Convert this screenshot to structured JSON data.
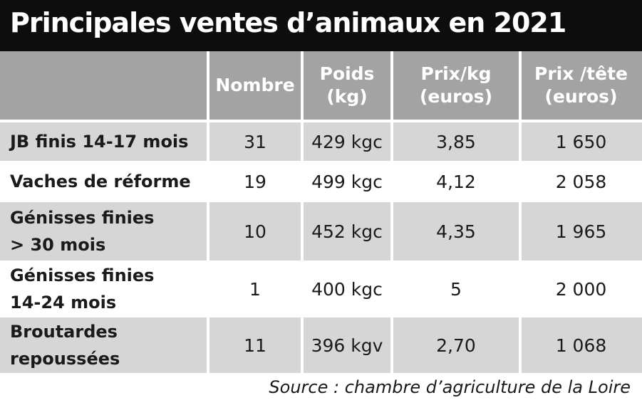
{
  "title": "Principales ventes d’animaux en 2021",
  "columns": {
    "nombre": "Nombre",
    "poids_1": "Poids",
    "poids_2": "(kg)",
    "prixkg_1": "Prix/kg",
    "prixkg_2": "(euros)",
    "prixtete_1": "Prix /tête",
    "prixtete_2": "(euros)"
  },
  "rows": [
    {
      "label_1": "JB finis 14-17 mois",
      "label_2": "",
      "nombre": "31",
      "poids": "429 kgc",
      "prix_kg": "3,85",
      "prix_tete": "1 650"
    },
    {
      "label_1": "Vaches de réforme",
      "label_2": "",
      "nombre": "19",
      "poids": "499 kgc",
      "prix_kg": "4,12",
      "prix_tete": "2 058"
    },
    {
      "label_1": "Génisses finies",
      "label_2": "> 30 mois",
      "nombre": "10",
      "poids": "452 kgc",
      "prix_kg": "4,35",
      "prix_tete": "1 965"
    },
    {
      "label_1": "Génisses finies",
      "label_2": "14-24 mois",
      "nombre": "1",
      "poids": "400 kgc",
      "prix_kg": "5",
      "prix_tete": "2 000"
    },
    {
      "label_1": "Broutardes",
      "label_2": "repoussées",
      "nombre": "11",
      "poids": "396 kgv",
      "prix_kg": "2,70",
      "prix_tete": "1 068"
    }
  ],
  "source": "Source : chambre d’agriculture de la Loire"
}
